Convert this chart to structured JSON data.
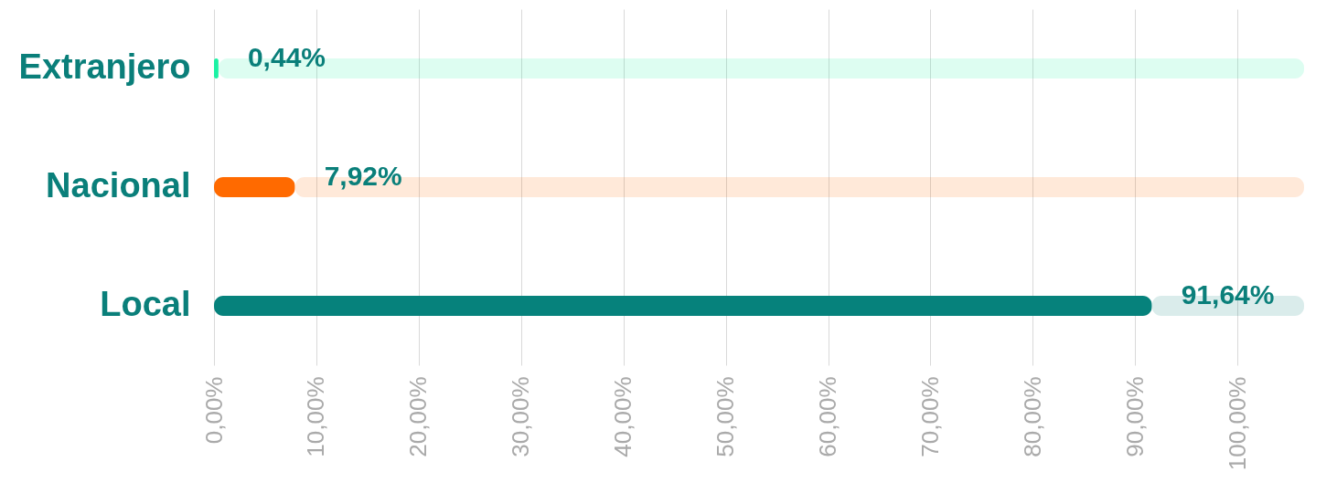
{
  "chart_data": {
    "type": "bar",
    "orientation": "horizontal",
    "categories": [
      "Extranjero",
      "Nacional",
      "Local"
    ],
    "values": [
      0.44,
      7.92,
      91.64
    ],
    "colors": [
      "#1cf2a4",
      "#ff6a00",
      "#06827c"
    ],
    "value_labels": [
      "0,44%",
      "7,92%",
      "91,64%"
    ],
    "xlim": [
      0,
      106.5
    ],
    "xticks": [
      {
        "value": 0,
        "label": "0,00%"
      },
      {
        "value": 10,
        "label": "10,00%"
      },
      {
        "value": 20,
        "label": "20,00%"
      },
      {
        "value": 30,
        "label": "30,00%"
      },
      {
        "value": 40,
        "label": "40,00%"
      },
      {
        "value": 50,
        "label": "50,00%"
      },
      {
        "value": 60,
        "label": "60,00%"
      },
      {
        "value": 70,
        "label": "70,00%"
      },
      {
        "value": 80,
        "label": "80,00%"
      },
      {
        "value": 90,
        "label": "90,00%"
      },
      {
        "value": 100,
        "label": "100,00%"
      }
    ],
    "grid": "x",
    "legend": false
  }
}
